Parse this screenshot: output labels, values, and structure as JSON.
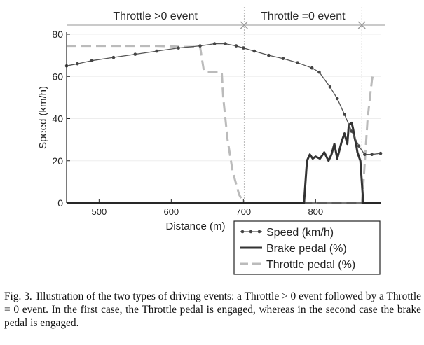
{
  "chart_data": {
    "type": "line",
    "xlabel": "Distance (m)",
    "ylabel": "Speed (km/h)",
    "xlim": [
      455,
      890
    ],
    "ylim": [
      0,
      81
    ],
    "x_ticks": [
      500,
      600,
      700,
      800
    ],
    "y_ticks": [
      0,
      20,
      40,
      60,
      80
    ],
    "event_labels": [
      "Throttle >0 event",
      "Throttle =0 event"
    ],
    "event_boundaries": [
      701,
      864
    ],
    "legend_position": "bottom-right",
    "series": [
      {
        "name": "Speed (km/h)",
        "color": "#555555",
        "style": "line-with-dots",
        "x": [
          455,
          470,
          490,
          520,
          550,
          580,
          610,
          640,
          660,
          675,
          690,
          700,
          715,
          735,
          755,
          775,
          795,
          805,
          820,
          830,
          840,
          850,
          860,
          868,
          878,
          890
        ],
        "y": [
          65,
          66,
          67.5,
          69,
          70.5,
          72,
          73.5,
          74.5,
          75.5,
          75.5,
          74.5,
          73.5,
          72,
          70,
          68.5,
          66.5,
          64,
          62,
          55,
          49.5,
          42,
          34,
          27,
          23,
          23,
          23.5
        ]
      },
      {
        "name": "Brake pedal (%)",
        "color": "#333333",
        "style": "solid-thick",
        "x": [
          455,
          784,
          786,
          788,
          792,
          796,
          800,
          806,
          812,
          818,
          822,
          826,
          830,
          836,
          840,
          844,
          846,
          850,
          852,
          854,
          856,
          858,
          862,
          866,
          890
        ],
        "y": [
          0,
          0,
          10,
          20,
          23,
          21,
          22,
          21,
          24,
          20,
          23,
          28,
          21,
          29,
          33,
          28,
          37,
          38,
          35,
          31,
          28,
          24,
          20,
          0,
          0
        ]
      },
      {
        "name": "Throttle pedal (%)",
        "color": "#bbbbbb",
        "style": "dashed",
        "x": [
          455,
          580,
          618,
          640,
          645,
          648,
          670,
          672,
          678,
          685,
          694,
          699,
          701,
          740,
          864,
          866,
          872,
          878,
          880
        ],
        "y": [
          74.5,
          74.5,
          74,
          74,
          63,
          62,
          62,
          50,
          30,
          15,
          4,
          1,
          0,
          0,
          0,
          8,
          40,
          58,
          62
        ]
      }
    ]
  },
  "caption": {
    "label": "Fig. 3.",
    "text": "Illustration of the two types of driving events: a Throttle > 0 event followed by a Throttle = 0 event. In the first case, the Throttle pedal is engaged, whereas in the second case the brake pedal is engaged."
  }
}
